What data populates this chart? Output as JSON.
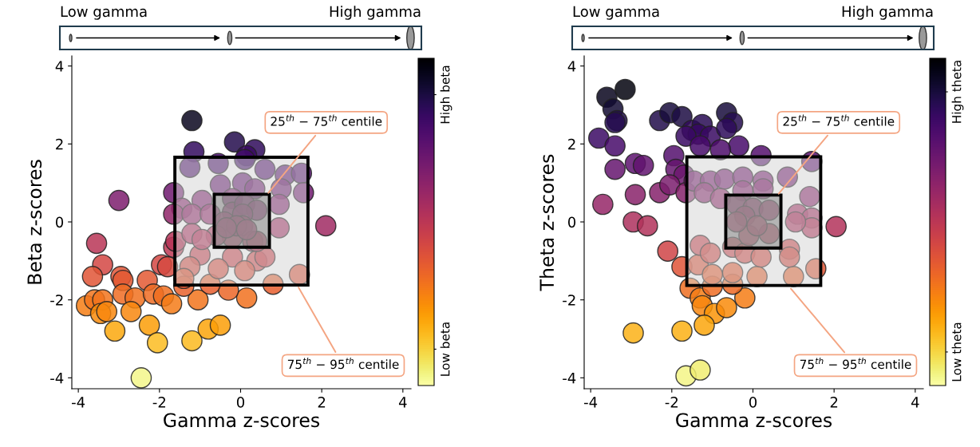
{
  "chart_data": [
    {
      "type": "scatter",
      "xlabel": "Gamma z-scores",
      "ylabel": "Beta z-scores",
      "marker": "circle",
      "grid": false,
      "xlim": [
        -4.16,
        4.2
      ],
      "ylim": [
        -4.28,
        4.26
      ],
      "xticks": [
        -4,
        -2,
        0,
        2,
        4
      ],
      "yticks": [
        -4,
        -2,
        0,
        2,
        4
      ],
      "clim": [
        -4.2,
        3.0
      ],
      "cticks": [
        {
          "value": 2.2,
          "label": "High beta"
        },
        {
          "value": -3.4,
          "label": "Low beta"
        }
      ],
      "bands": [
        {
          "axis": "x",
          "from": -1.62,
          "to": 1.66,
          "color": "#d3d3d3"
        },
        {
          "axis": "x",
          "from": -0.65,
          "to": 0.71,
          "color": "#808080"
        }
      ],
      "annotations": [
        "Low gamma",
        "High gamma",
        {
          "text": "25$^{th}$ − 75$^{th}$ centile",
          "x": 0.65,
          "y": 0.7
        },
        {
          "text": "75$^{th}$ − 95$^{th}$ centile",
          "x": 1.4,
          "y": -1.63
        }
      ],
      "series": [
        {
          "x": [
            -1.2,
            -3.0,
            -2.45,
            2.1,
            -1.15,
            -0.15,
            0.35,
            0.15,
            -0.55,
            -1.65,
            -1.25,
            0.1,
            0.6,
            1.1,
            1.5,
            1.55,
            1.0,
            -0.5,
            0.05,
            0.35,
            -1.45,
            -0.95,
            -0.2,
            0.95,
            -1.65,
            -1.2,
            -0.75,
            -0.2,
            0.1,
            0.4,
            0.05,
            -0.4,
            0.05,
            0.3,
            -0.2,
            -3.55,
            -3.4,
            -3.65,
            -2.95,
            -2.9,
            -3.8,
            -3.6,
            -3.4,
            -3.45,
            -3.3,
            -3.1,
            -2.9,
            -2.6,
            -2.7,
            -2.3,
            -2.25,
            -2.05,
            -2.15,
            -1.9,
            -1.7,
            -1.95,
            -1.8,
            -1.2,
            -1.05,
            -0.8,
            -0.5,
            0.15,
            0.8,
            1.45,
            -0.3,
            -0.75,
            -1.4,
            -1.65,
            -1.6,
            -1.0,
            -0.2,
            0.4,
            0.1,
            -0.55,
            -1.25,
            0.95,
            0.6,
            -0.6,
            0.4,
            -0.1,
            -0.35,
            0.15,
            -1.2,
            -0.95,
            -1.4
          ],
          "values": [
            2.6,
            0.55,
            -4.0,
            -0.1,
            1.8,
            2.05,
            1.85,
            1.7,
            1.5,
            0.75,
            1.4,
            1.6,
            1.35,
            1.2,
            1.25,
            0.75,
            0.85,
            0.95,
            1.0,
            0.85,
            0.35,
            0.55,
            0.6,
            0.45,
            0.2,
            0.2,
            0.2,
            0.25,
            0.45,
            0.3,
            0.2,
            0.0,
            -0.1,
            -0.5,
            -0.4,
            -0.55,
            -1.1,
            -1.4,
            -1.4,
            -1.5,
            -2.15,
            -2.0,
            -2.0,
            -2.35,
            -2.3,
            -2.8,
            -1.85,
            -1.95,
            -2.3,
            -1.5,
            -2.65,
            -3.1,
            -1.85,
            -1.9,
            -2.1,
            -1.1,
            -1.15,
            -3.05,
            -2.0,
            -2.75,
            -2.65,
            -1.95,
            -1.6,
            -1.35,
            -1.75,
            -1.6,
            -1.65,
            -0.65,
            -0.5,
            -0.85,
            -0.9,
            -1.0,
            -1.25,
            -1.2,
            -1.15,
            -0.15,
            -0.9,
            -0.35,
            -0.5,
            -0.1,
            -0.15,
            -0.2,
            -0.3,
            -0.45,
            -1.45
          ],
          "cvalues": [
            2.6,
            0.55,
            -4.0,
            -0.1,
            1.8,
            2.05,
            1.85,
            1.7,
            1.5,
            0.75,
            1.4,
            1.6,
            1.35,
            1.2,
            1.25,
            0.75,
            0.85,
            0.95,
            1.0,
            0.85,
            0.35,
            0.55,
            0.6,
            0.45,
            0.2,
            0.2,
            0.2,
            0.25,
            0.45,
            0.3,
            0.2,
            0.0,
            -0.1,
            -0.5,
            -0.4,
            -0.55,
            -1.1,
            -1.4,
            -1.4,
            -1.5,
            -2.15,
            -2.0,
            -2.0,
            -2.35,
            -2.3,
            -2.8,
            -1.85,
            -1.95,
            -2.3,
            -1.5,
            -2.65,
            -3.1,
            -1.85,
            -1.9,
            -2.1,
            -1.1,
            -1.15,
            -3.05,
            -2.0,
            -2.75,
            -2.65,
            -1.95,
            -1.6,
            -1.35,
            -1.75,
            -1.6,
            -1.65,
            -0.65,
            -0.5,
            -0.85,
            -0.9,
            -1.0,
            -1.25,
            -1.2,
            -1.15,
            -0.15,
            -0.9,
            -0.35,
            -0.5,
            -0.1,
            -0.15,
            -0.2,
            -0.3,
            -0.45,
            -1.45
          ]
        }
      ]
    },
    {
      "type": "scatter",
      "xlabel": "Gamma z-scores",
      "ylabel": "Theta z-scores",
      "marker": "circle",
      "grid": false,
      "xlim": [
        -4.16,
        4.2
      ],
      "ylim": [
        -4.28,
        4.26
      ],
      "xticks": [
        -4,
        -2,
        0,
        2,
        4
      ],
      "yticks": [
        -4,
        -2,
        0,
        2,
        4
      ],
      "clim": [
        -4.2,
        3.6
      ],
      "cticks": [
        {
          "value": 2.8,
          "label": "High theta"
        },
        {
          "value": -3.4,
          "label": "Low theta"
        }
      ],
      "bands": [
        {
          "axis": "x",
          "from": -1.63,
          "to": 1.67,
          "color": "#d3d3d3"
        },
        {
          "axis": "x",
          "from": -0.67,
          "to": 0.69,
          "color": "#808080"
        }
      ],
      "annotations": [
        "Low gamma",
        "High gamma",
        {
          "text": "25$^{th}$ − 75$^{th}$ centile",
          "x": 0.6,
          "y": 0.68
        },
        {
          "text": "75$^{th}$ − 95$^{th}$ centile",
          "x": 0.9,
          "y": -1.67
        }
      ],
      "series": [
        {
          "x": [
            -3.15,
            -3.6,
            -3.45,
            -3.35,
            -3.4,
            -3.8,
            -3.4,
            -3.4,
            -2.9,
            -2.7,
            -2.9,
            -3.7,
            -2.3,
            -2.05,
            -1.75,
            -1.5,
            -1.25,
            -1.35,
            -1.65,
            -1.05,
            -1.3,
            -0.65,
            -0.5,
            -0.65,
            -0.35,
            -0.8,
            0.2,
            1.45,
            -1.95,
            -1.9,
            -1.7,
            -2.3,
            -2.05,
            -1.65,
            -1.45,
            -1.05,
            -0.7,
            -0.25,
            0.25,
            0.85,
            1.4,
            -1.2,
            -0.8,
            -0.25,
            0.25,
            1.1,
            1.45,
            2.05,
            -0.4,
            0.0,
            0.4,
            -0.2,
            -2.95,
            -2.6,
            -2.1,
            -1.75,
            -1.55,
            -1.3,
            -1.25,
            -0.95,
            -0.65,
            -1.2,
            -1.75,
            -2.95,
            -1.65,
            -1.3,
            -0.2,
            -1.0,
            -0.5,
            0.1,
            1.0,
            1.55,
            -1.35,
            -0.5,
            -1.0,
            -1.3,
            -1.05,
            -0.5,
            -0.2,
            0.2,
            0.9,
            0.9,
            1.45,
            1.05,
            -0.1,
            0.4,
            -0.4,
            0.1
          ],
          "values": [
            3.4,
            3.2,
            2.9,
            2.6,
            2.55,
            2.15,
            1.95,
            1.35,
            1.5,
            1.45,
            0.7,
            0.45,
            2.6,
            2.8,
            2.7,
            2.35,
            2.5,
            2.25,
            2.2,
            2.2,
            1.95,
            2.8,
            2.55,
            2.4,
            1.95,
            1.85,
            1.7,
            1.55,
            1.7,
            1.35,
            1.2,
            0.75,
            0.95,
            0.75,
            1.05,
            1.05,
            1.1,
            1.15,
            1.05,
            1.15,
            0.65,
            0.75,
            0.6,
            0.8,
            0.85,
            0.2,
            0.1,
            -0.12,
            0.45,
            0.35,
            0.3,
            0.15,
            0.0,
            -0.1,
            -0.75,
            -1.15,
            -1.7,
            -1.95,
            -2.15,
            -2.35,
            -2.2,
            -2.65,
            -2.8,
            -2.85,
            -3.95,
            -3.8,
            -1.95,
            -1.65,
            -1.6,
            -1.4,
            -1.4,
            -1.2,
            -1.1,
            -1.3,
            -1.35,
            -0.6,
            -0.8,
            -0.65,
            -0.8,
            -0.9,
            -0.7,
            -0.9,
            -0.15,
            0.0,
            -0.35,
            -0.3,
            0.0,
            -0.1
          ],
          "cvalues": [
            3.4,
            3.2,
            2.9,
            2.6,
            2.55,
            2.15,
            1.95,
            1.35,
            1.5,
            1.45,
            0.7,
            0.45,
            2.6,
            2.8,
            2.7,
            2.35,
            2.5,
            2.25,
            2.2,
            2.2,
            1.95,
            2.8,
            2.55,
            2.4,
            1.95,
            1.85,
            1.7,
            1.55,
            1.7,
            1.35,
            1.2,
            0.75,
            0.95,
            0.75,
            1.05,
            1.05,
            1.1,
            1.15,
            1.05,
            1.15,
            0.65,
            0.75,
            0.6,
            0.8,
            0.85,
            0.2,
            0.1,
            -0.12,
            0.45,
            0.35,
            0.3,
            0.15,
            0.0,
            -0.1,
            -0.75,
            -1.15,
            -1.7,
            -1.95,
            -2.15,
            -2.35,
            -2.2,
            -2.65,
            -2.8,
            -2.85,
            -3.95,
            -3.8,
            -1.95,
            -1.65,
            -1.6,
            -1.4,
            -1.4,
            -1.2,
            -1.1,
            -1.3,
            -1.35,
            -0.6,
            -0.8,
            -0.65,
            -0.8,
            -0.9,
            -0.7,
            -0.9,
            -0.15,
            0.0,
            -0.35,
            -0.3,
            0.0,
            -0.1
          ]
        }
      ]
    }
  ]
}
